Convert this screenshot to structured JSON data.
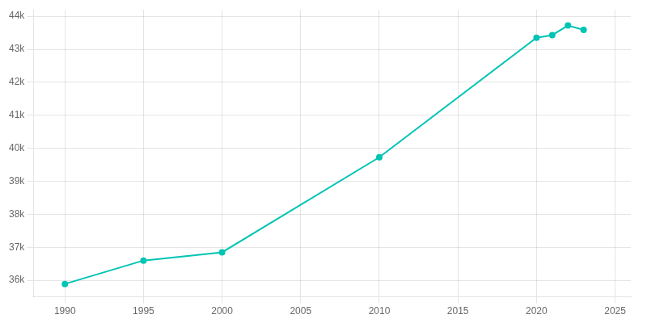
{
  "chart_data": {
    "type": "line",
    "x": [
      1990,
      1995,
      2000,
      2010,
      2020,
      2021,
      2022,
      2023
    ],
    "values": [
      35890,
      36600,
      36850,
      39728,
      43350,
      43430,
      43720,
      43590
    ],
    "color": "#00c4b4",
    "marker": "circle",
    "xlim": [
      1988,
      2026
    ],
    "xticks": [
      1990,
      1995,
      2000,
      2005,
      2010,
      2015,
      2020,
      2025
    ],
    "ylim": [
      35500,
      44200
    ],
    "yticks": [
      {
        "value": 36000,
        "label": "36k"
      },
      {
        "value": 37000,
        "label": "37k"
      },
      {
        "value": 38000,
        "label": "38k"
      },
      {
        "value": 39000,
        "label": "39k"
      },
      {
        "value": 40000,
        "label": "40k"
      },
      {
        "value": 41000,
        "label": "41k"
      },
      {
        "value": 42000,
        "label": "42k"
      },
      {
        "value": 43000,
        "label": "43k"
      },
      {
        "value": 44000,
        "label": "44k"
      }
    ],
    "grid": true
  }
}
